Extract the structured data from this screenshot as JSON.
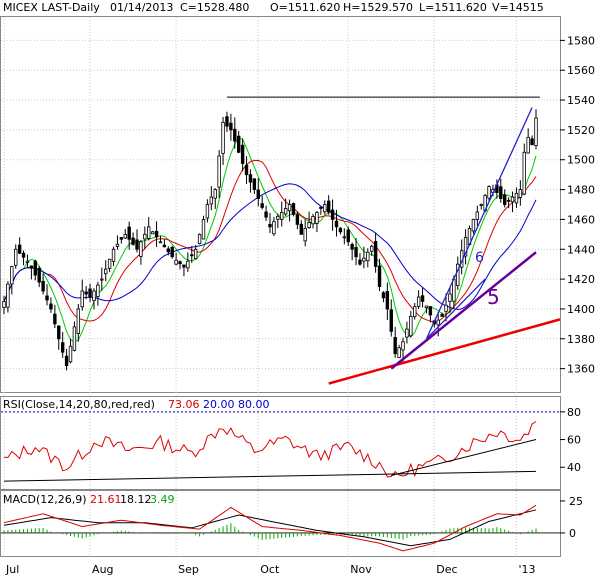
{
  "header": {
    "symbol": "MICEX LAST-Daily",
    "date": "01/14/2013",
    "close": "C=1528.480",
    "open": "O=1511.620",
    "high": "H=1529.570",
    "low": "L=1511.620",
    "volume": "V=14515"
  },
  "rsi_header": {
    "label": "RSI(Close,14,20,80,red,red)",
    "value": "73.06",
    "low": "20.00",
    "high": "80.00"
  },
  "macd_header": {
    "label": "MACD(12,26,9)",
    "macd": "21.61",
    "signal": "18.12",
    "hist": "3.49"
  },
  "annotations": {
    "channel_label": "6",
    "wave_label": "5"
  },
  "colors": {
    "price": "#000000",
    "ma_fast": "#00cc00",
    "ma_mid": "#dd0000",
    "ma_slow": "#0000cc",
    "trend_red": "#ee0000",
    "trend_purple": "#660099",
    "channel_blue": "#2222cc",
    "rsi_line": "#dd0000",
    "rsi_ref": "#0000cc",
    "macd_line": "#dd0000",
    "signal_line": "#000000",
    "hist": "#00aa00",
    "up_fill": "#ffffff"
  },
  "chart_data": [
    {
      "type": "candlestick",
      "title": "MICEX LAST-Daily",
      "x_axis_labels": [
        "Jul",
        "Aug",
        "Sep",
        "Oct",
        "Nov",
        "Dec",
        "'13"
      ],
      "y_ticks": [
        1360,
        1380,
        1400,
        1420,
        1440,
        1460,
        1480,
        1500,
        1520,
        1540,
        1560,
        1580
      ],
      "ylim": [
        1345,
        1595
      ],
      "grid": true,
      "anchors": [
        {
          "i": 0,
          "c": 1405
        },
        {
          "i": 3,
          "c": 1440
        },
        {
          "i": 6,
          "c": 1432
        },
        {
          "i": 9,
          "c": 1418
        },
        {
          "i": 12,
          "c": 1400
        },
        {
          "i": 14,
          "c": 1380
        },
        {
          "i": 16,
          "c": 1362
        },
        {
          "i": 18,
          "c": 1388
        },
        {
          "i": 20,
          "c": 1412
        },
        {
          "i": 22,
          "c": 1408
        },
        {
          "i": 25,
          "c": 1420
        },
        {
          "i": 28,
          "c": 1440
        },
        {
          "i": 31,
          "c": 1450
        },
        {
          "i": 34,
          "c": 1440
        },
        {
          "i": 37,
          "c": 1455
        },
        {
          "i": 40,
          "c": 1445
        },
        {
          "i": 43,
          "c": 1435
        },
        {
          "i": 46,
          "c": 1428
        },
        {
          "i": 49,
          "c": 1440
        },
        {
          "i": 52,
          "c": 1470
        },
        {
          "i": 54,
          "c": 1480
        },
        {
          "i": 56,
          "c": 1525
        },
        {
          "i": 58,
          "c": 1520
        },
        {
          "i": 60,
          "c": 1505
        },
        {
          "i": 62,
          "c": 1490
        },
        {
          "i": 64,
          "c": 1480
        },
        {
          "i": 66,
          "c": 1468
        },
        {
          "i": 68,
          "c": 1455
        },
        {
          "i": 70,
          "c": 1462
        },
        {
          "i": 73,
          "c": 1470
        },
        {
          "i": 76,
          "c": 1450
        },
        {
          "i": 79,
          "c": 1462
        },
        {
          "i": 82,
          "c": 1470
        },
        {
          "i": 85,
          "c": 1455
        },
        {
          "i": 88,
          "c": 1445
        },
        {
          "i": 91,
          "c": 1430
        },
        {
          "i": 94,
          "c": 1442
        },
        {
          "i": 96,
          "c": 1415
        },
        {
          "i": 98,
          "c": 1400
        },
        {
          "i": 100,
          "c": 1370
        },
        {
          "i": 102,
          "c": 1378
        },
        {
          "i": 104,
          "c": 1395
        },
        {
          "i": 106,
          "c": 1408
        },
        {
          "i": 108,
          "c": 1402
        },
        {
          "i": 110,
          "c": 1390
        },
        {
          "i": 112,
          "c": 1395
        },
        {
          "i": 114,
          "c": 1410
        },
        {
          "i": 116,
          "c": 1430
        },
        {
          "i": 118,
          "c": 1448
        },
        {
          "i": 120,
          "c": 1460
        },
        {
          "i": 122,
          "c": 1470
        },
        {
          "i": 124,
          "c": 1482
        },
        {
          "i": 126,
          "c": 1478
        },
        {
          "i": 128,
          "c": 1470
        },
        {
          "i": 130,
          "c": 1475
        },
        {
          "i": 132,
          "c": 1480
        },
        {
          "i": 133,
          "c": 1505
        },
        {
          "i": 134,
          "c": 1515
        },
        {
          "i": 135,
          "c": 1510
        },
        {
          "i": 136,
          "c": 1528
        }
      ],
      "total_bars": 137,
      "trendlines": [
        {
          "name": "resistance",
          "from": {
            "i": 57,
            "p": 1542
          },
          "to": {
            "i": 137,
            "p": 1542
          }
        },
        {
          "name": "support-red",
          "from": {
            "i": 83,
            "p": 1350
          },
          "to": {
            "i": 145,
            "p": 1393
          }
        },
        {
          "name": "support-purple",
          "from": {
            "i": 99,
            "p": 1360
          },
          "to": {
            "i": 136,
            "p": 1438
          }
        },
        {
          "name": "channel-lower",
          "from": {
            "i": 108,
            "p": 1380
          },
          "to": {
            "i": 123,
            "p": 1420
          }
        },
        {
          "name": "channel-upper",
          "from": {
            "i": 108,
            "p": 1380
          },
          "to": {
            "i": 135,
            "p": 1535
          }
        }
      ]
    },
    {
      "type": "line",
      "title": "RSI(Close,14,20,80,red,red)",
      "y_ticks": [
        40,
        60,
        80
      ],
      "ylim": [
        25,
        90
      ],
      "reference_lines": [
        20,
        80
      ],
      "anchors": [
        {
          "i": 0,
          "v": 45
        },
        {
          "i": 8,
          "v": 55
        },
        {
          "i": 16,
          "v": 40
        },
        {
          "i": 24,
          "v": 60
        },
        {
          "i": 32,
          "v": 52
        },
        {
          "i": 40,
          "v": 58
        },
        {
          "i": 48,
          "v": 50
        },
        {
          "i": 56,
          "v": 70
        },
        {
          "i": 64,
          "v": 52
        },
        {
          "i": 72,
          "v": 60
        },
        {
          "i": 80,
          "v": 48
        },
        {
          "i": 88,
          "v": 55
        },
        {
          "i": 96,
          "v": 42
        },
        {
          "i": 100,
          "v": 32
        },
        {
          "i": 104,
          "v": 38
        },
        {
          "i": 112,
          "v": 45
        },
        {
          "i": 120,
          "v": 58
        },
        {
          "i": 126,
          "v": 66
        },
        {
          "i": 132,
          "v": 60
        },
        {
          "i": 136,
          "v": 73.06
        }
      ]
    },
    {
      "type": "line",
      "title": "MACD(12,26,9)",
      "y_ticks": [
        0,
        25
      ],
      "ylim": [
        -18,
        32
      ],
      "macd_anchors": [
        {
          "i": 0,
          "v": 8
        },
        {
          "i": 10,
          "v": 15
        },
        {
          "i": 20,
          "v": 5
        },
        {
          "i": 30,
          "v": 10
        },
        {
          "i": 40,
          "v": 6
        },
        {
          "i": 50,
          "v": 3
        },
        {
          "i": 58,
          "v": 20
        },
        {
          "i": 66,
          "v": 5
        },
        {
          "i": 76,
          "v": 2
        },
        {
          "i": 86,
          "v": -2
        },
        {
          "i": 96,
          "v": -8
        },
        {
          "i": 102,
          "v": -14
        },
        {
          "i": 110,
          "v": -8
        },
        {
          "i": 118,
          "v": 5
        },
        {
          "i": 126,
          "v": 15
        },
        {
          "i": 132,
          "v": 14
        },
        {
          "i": 136,
          "v": 21.61
        }
      ],
      "signal_anchors": [
        {
          "i": 0,
          "v": 6
        },
        {
          "i": 12,
          "v": 12
        },
        {
          "i": 24,
          "v": 8
        },
        {
          "i": 36,
          "v": 8
        },
        {
          "i": 48,
          "v": 4
        },
        {
          "i": 60,
          "v": 14
        },
        {
          "i": 70,
          "v": 8
        },
        {
          "i": 80,
          "v": 2
        },
        {
          "i": 92,
          "v": -3
        },
        {
          "i": 104,
          "v": -10
        },
        {
          "i": 114,
          "v": -5
        },
        {
          "i": 124,
          "v": 9
        },
        {
          "i": 132,
          "v": 15
        },
        {
          "i": 136,
          "v": 18.12
        }
      ]
    }
  ]
}
